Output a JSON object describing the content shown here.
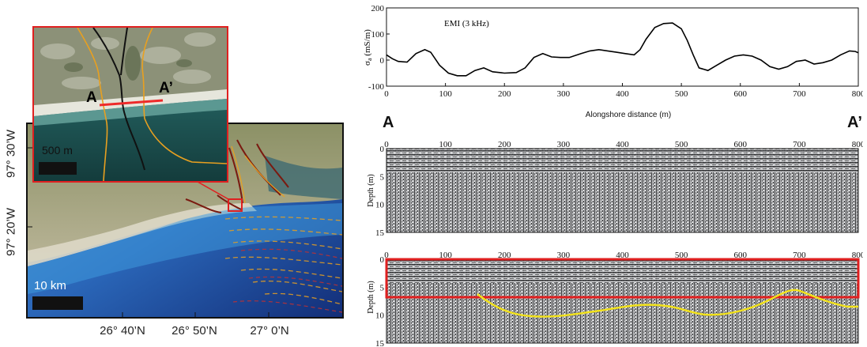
{
  "map": {
    "lat_labels": [
      "97° 30’W",
      "97° 20’W"
    ],
    "lon_labels": [
      "26° 40’N",
      "26° 50’N",
      "27° 0’N"
    ],
    "scale_main": "10 km",
    "scale_inset": "500 m",
    "point_a": "A",
    "point_a_prime": "A’"
  },
  "emi": {
    "title": "EMI (3 kHz)",
    "ylabel": "σ",
    "ylabel_sub": "a",
    "ylabel_unit": " (mS/m)",
    "xlabel": "Alongshore distance (m)",
    "end_a": "A",
    "end_a_prime": "A’"
  },
  "gpr": {
    "ylabel": "Depth (m)"
  },
  "colors": {
    "emi_line": "#000000",
    "highlight_box": "#e02020",
    "interpreted_reflector": "#f2e21a",
    "inset_border": "#e02020",
    "coastline_fault": "#e8a020"
  },
  "chart_data": [
    {
      "type": "line",
      "title": "EMI (3 kHz)",
      "xlabel": "Alongshore distance (m)",
      "ylabel": "σa (mS/m)",
      "xlim": [
        0,
        800
      ],
      "ylim": [
        -100,
        200
      ],
      "xticks": [
        0,
        100,
        200,
        300,
        400,
        500,
        600,
        700,
        800
      ],
      "yticks": [
        -100,
        0,
        100,
        200
      ],
      "grid": false,
      "series": [
        {
          "x": [
            0,
            10,
            20,
            35,
            50,
            65,
            75,
            90,
            105,
            120,
            135,
            150,
            165,
            180,
            200,
            220,
            235,
            250,
            265,
            280,
            295,
            310,
            330,
            345,
            360,
            375,
            390,
            405,
            420,
            430,
            440,
            455,
            470,
            485,
            500,
            510,
            520,
            530,
            545,
            560,
            575,
            590,
            605,
            620,
            635,
            650,
            665,
            680,
            695,
            710,
            725,
            740,
            755,
            770,
            785,
            795,
            800
          ],
          "y": [
            20,
            5,
            -5,
            -8,
            25,
            40,
            30,
            -20,
            -50,
            -60,
            -60,
            -40,
            -30,
            -45,
            -50,
            -48,
            -30,
            10,
            25,
            12,
            10,
            10,
            25,
            35,
            40,
            35,
            30,
            25,
            20,
            40,
            80,
            125,
            140,
            142,
            120,
            75,
            20,
            -30,
            -40,
            -20,
            0,
            15,
            20,
            15,
            0,
            -25,
            -35,
            -25,
            -5,
            0,
            -15,
            -10,
            0,
            20,
            35,
            33,
            28
          ]
        }
      ]
    }
  ]
}
